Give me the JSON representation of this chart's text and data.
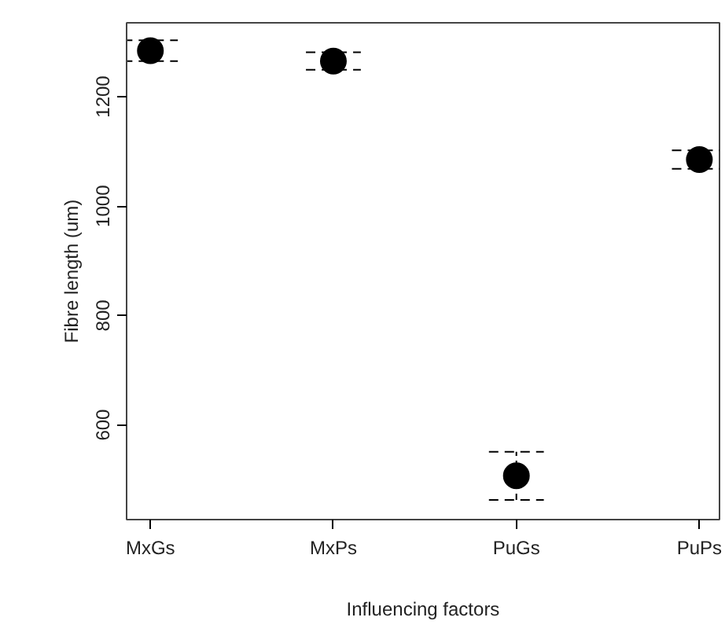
{
  "chart_data": {
    "type": "scatter",
    "xlabel": "Influencing factors",
    "ylabel": "Fibre length (um)",
    "categories": [
      "MxGs",
      "MxPs",
      "PuGs",
      "PuPs"
    ],
    "series": [
      {
        "color": "#000000",
        "values": [
          1284,
          1265,
          507,
          1085
        ],
        "errors": [
          19,
          16,
          44,
          17
        ]
      }
    ],
    "ylim": [
      427,
      1335
    ],
    "yticks": [
      600,
      800,
      1000,
      1200
    ],
    "grid": false,
    "marker": "circle"
  }
}
